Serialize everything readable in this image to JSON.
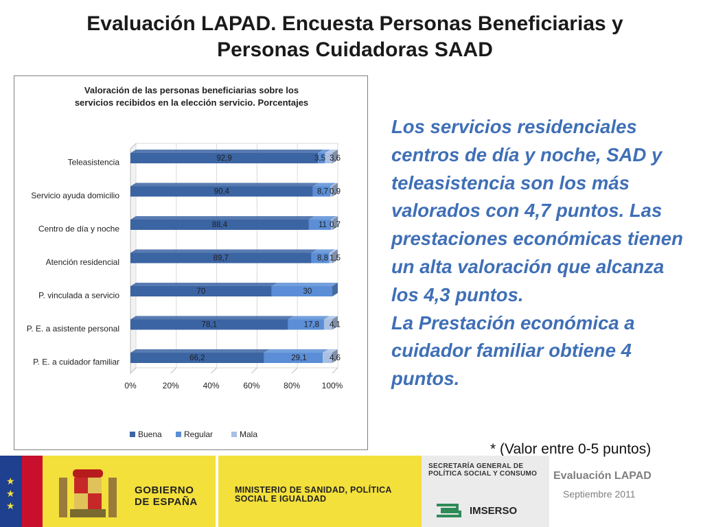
{
  "slide": {
    "title": "Evaluación LAPAD.  Encuesta Personas Beneficiarias y Personas  Cuidadoras SAAD",
    "side_text": [
      "Los servicios  residenciales centros de  día y noche, SAD y teleasistencia son los más valorados con 4,7 puntos. Las prestaciones económicas tienen un alta valoración que alcanza los 4,3 puntos.",
      "La Prestación económica a cuidador familiar  obtiene 4 puntos."
    ],
    "footnote": "* (Valor entre 0-5 puntos)"
  },
  "chart_data": {
    "type": "bar",
    "orientation": "horizontal",
    "stacked": "percent",
    "title": "Valoración de las personas  beneficiarias sobre los servicios recibidos en la elección servicio. Porcentajes",
    "categories": [
      "Teleasistencia",
      "Servicio ayuda domicilio",
      "Centro de día y noche",
      "Atención residencial",
      "P. vinculada a servicio",
      "P. E. a asistente personal",
      "P. E. a cuidador familiar"
    ],
    "series": [
      {
        "name": "Buena",
        "color": "#3b64a3",
        "values": [
          92.9,
          90.4,
          88.4,
          89.7,
          70,
          78.1,
          66.2
        ],
        "labels": [
          "92,9",
          "90,4",
          "88,4",
          "89,7",
          "70",
          "78,1",
          "66,2"
        ]
      },
      {
        "name": "Regular",
        "color": "#5b8ed6",
        "values": [
          3.5,
          8.7,
          11,
          8.8,
          30,
          17.8,
          29.1
        ],
        "labels": [
          "3,5",
          "8,7",
          "11",
          "8,8",
          "30",
          "17,8",
          "29,1"
        ]
      },
      {
        "name": "Mala",
        "color": "#a9bfe3",
        "values": [
          3.6,
          0.9,
          0.7,
          1.5,
          0,
          4.1,
          4.6
        ],
        "labels": [
          "3,6",
          "0,9",
          "0,7",
          "1,5",
          "",
          "4,1",
          "4,6"
        ]
      }
    ],
    "xticks": [
      "0%",
      "20%",
      "40%",
      "60%",
      "80%",
      "100%"
    ],
    "xlim": [
      0,
      100
    ],
    "legend_position": "bottom",
    "grid": true
  },
  "footer": {
    "gobierno": "GOBIERNO DE ESPAÑA",
    "ministerio": "MINISTERIO DE SANIDAD, POLÍTICA SOCIAL E IGUALDAD",
    "secretaria": "SECRETARÍA GENERAL DE POLÍTICA SOCIAL Y CONSUMO",
    "imserso": "IMSERSO",
    "eval_label": "Evaluación LAPAD",
    "date_label": "Septiembre 2011"
  }
}
